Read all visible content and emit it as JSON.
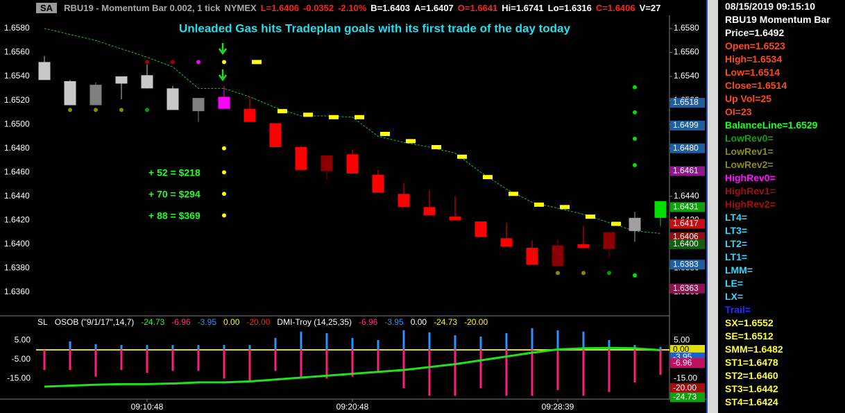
{
  "header": {
    "symbol": "SA",
    "items": [
      {
        "text": "RBU19 - Momentum Bar 0.002, 1 tick",
        "color": "#a8a8a8"
      },
      {
        "text": "NYMEX",
        "color": "#a8a8a8"
      },
      {
        "text": "L=1.6406",
        "color": "#ff2020"
      },
      {
        "text": "-0.0352",
        "color": "#ff2020"
      },
      {
        "text": "-2.10%",
        "color": "#ff2020"
      },
      {
        "text": "B=1.6403",
        "color": "#ffffff"
      },
      {
        "text": "A=1.6407",
        "color": "#ffffff"
      },
      {
        "text": "O=1.6641",
        "color": "#ff2020"
      },
      {
        "text": "Hi=1.6741",
        "color": "#ffffff"
      },
      {
        "text": "Lo=1.6316",
        "color": "#ffffff"
      },
      {
        "text": "C=1.6406",
        "color": "#ff2020"
      },
      {
        "text": "V=27",
        "color": "#ffffff"
      }
    ]
  },
  "chart_data": [
    {
      "type": "candlestick",
      "title": "Unleaded Gas hits Tradeplan goals with its first trade of the day today",
      "title_color": "#20e0f0",
      "annotations": [
        {
          "text": "+ 52 = $218",
          "color": "#20ff20"
        },
        {
          "text": "+ 70 = $294",
          "color": "#20ff20"
        },
        {
          "text": "+ 88 = $369",
          "color": "#20ff20"
        }
      ],
      "categories": [
        null,
        null,
        null,
        null,
        "09:10:48",
        null,
        null,
        null,
        null,
        null,
        null,
        null,
        "09:20:48",
        null,
        null,
        null,
        null,
        null,
        null,
        null,
        "09:28:39",
        null,
        null,
        null,
        null
      ],
      "ylim": [
        1.6342,
        1.6591
      ],
      "yticks": [
        {
          "value": 1.658,
          "label": "1.6580"
        },
        {
          "value": 1.656,
          "label": "1.6560"
        },
        {
          "value": 1.654,
          "label": "1.6540"
        },
        {
          "value": 1.652,
          "label": "1.6520"
        },
        {
          "value": 1.65,
          "label": "1.6500"
        },
        {
          "value": 1.648,
          "label": "1.6480"
        },
        {
          "value": 1.646,
          "label": "1.6460"
        },
        {
          "value": 1.644,
          "label": "1.6440"
        },
        {
          "value": 1.642,
          "label": "1.6420"
        },
        {
          "value": 1.64,
          "label": "1.6400"
        },
        {
          "value": 1.638,
          "label": "1.6380"
        },
        {
          "value": 1.636,
          "label": "1.6360"
        }
      ],
      "candles": [
        {
          "open": 1.6552,
          "high": 1.6557,
          "low": 1.6537,
          "close": 1.6537,
          "color": "#c8c8c8"
        },
        {
          "open": 1.6536,
          "high": 1.6537,
          "low": 1.6516,
          "close": 1.6516,
          "color": "#c8c8c8"
        },
        {
          "open": 1.6533,
          "high": 1.6535,
          "low": 1.6516,
          "close": 1.6516,
          "color": "#808080"
        },
        {
          "open": 1.6534,
          "high": 1.654,
          "low": 1.6521,
          "close": 1.654,
          "color": "#c8c8c8"
        },
        {
          "open": 1.653,
          "high": 1.655,
          "low": 1.653,
          "close": 1.6541,
          "color": "#c8c8c8"
        },
        {
          "open": 1.653,
          "high": 1.6532,
          "low": 1.6512,
          "close": 1.6512,
          "color": "#c8c8c8"
        },
        {
          "open": 1.6522,
          "high": 1.6522,
          "low": 1.6502,
          "close": 1.6511,
          "color": "#808080"
        },
        {
          "open": 1.6513,
          "high": 1.6532,
          "low": 1.6513,
          "close": 1.6523,
          "color": "#ff00ff"
        },
        {
          "open": 1.6513,
          "high": 1.6523,
          "low": 1.6502,
          "close": 1.6502,
          "color": "#ff0000"
        },
        {
          "open": 1.6501,
          "high": 1.6501,
          "low": 1.6481,
          "close": 1.6481,
          "color": "#ff0000"
        },
        {
          "open": 1.6481,
          "high": 1.6482,
          "low": 1.6462,
          "close": 1.6462,
          "color": "#ff0000"
        },
        {
          "open": 1.6474,
          "high": 1.6474,
          "low": 1.6454,
          "close": 1.6461,
          "color": "#8b0000"
        },
        {
          "open": 1.6475,
          "high": 1.6479,
          "low": 1.6459,
          "close": 1.6459,
          "color": "#ff0000"
        },
        {
          "open": 1.6458,
          "high": 1.6462,
          "low": 1.6443,
          "close": 1.6443,
          "color": "#ff0000"
        },
        {
          "open": 1.6442,
          "high": 1.6451,
          "low": 1.6431,
          "close": 1.6431,
          "color": "#ff0000"
        },
        {
          "open": 1.6431,
          "high": 1.6445,
          "low": 1.6424,
          "close": 1.6424,
          "color": "#ff0000"
        },
        {
          "open": 1.6423,
          "high": 1.644,
          "low": 1.642,
          "close": 1.642,
          "color": "#ff0000"
        },
        {
          "open": 1.6419,
          "high": 1.6419,
          "low": 1.6406,
          "close": 1.6406,
          "color": "#ff0000"
        },
        {
          "open": 1.6405,
          "high": 1.6418,
          "low": 1.6398,
          "close": 1.6398,
          "color": "#ff0000"
        },
        {
          "open": 1.6397,
          "high": 1.6403,
          "low": 1.6383,
          "close": 1.6383,
          "color": "#ff0000"
        },
        {
          "open": 1.6399,
          "high": 1.6404,
          "low": 1.6382,
          "close": 1.6382,
          "color": "#8b0000"
        },
        {
          "open": 1.64,
          "high": 1.6415,
          "low": 1.6397,
          "close": 1.6397,
          "color": "#ff0000"
        },
        {
          "open": 1.641,
          "high": 1.641,
          "low": 1.6389,
          "close": 1.6396,
          "color": "#8b0000"
        },
        {
          "open": 1.6411,
          "high": 1.6427,
          "low": 1.6402,
          "close": 1.6422,
          "color": "#a0a0a0"
        },
        {
          "open": 1.6422,
          "high": 1.6436,
          "low": 1.6415,
          "close": 1.6436,
          "color": "#00e000"
        }
      ],
      "balance_line": {
        "color": "#20c020",
        "values": [
          1.658,
          1.6575,
          1.657,
          1.6563,
          1.6556,
          1.6548,
          1.653,
          1.653,
          1.6523,
          1.6514,
          1.6507,
          1.6507,
          1.6506,
          1.649,
          1.6485,
          1.6481,
          1.6476,
          1.646,
          1.6446,
          1.6435,
          1.643,
          1.6425,
          1.6418,
          1.6411,
          1.6409
        ]
      },
      "stop_marks": {
        "color": "#ffff00",
        "values": [
          null,
          null,
          null,
          null,
          null,
          null,
          null,
          null,
          1.6552,
          1.6511,
          1.6508,
          1.6506,
          1.6506,
          1.6492,
          1.6486,
          1.6481,
          1.6473,
          1.6456,
          1.6442,
          1.6433,
          1.6431,
          1.6423,
          1.6417,
          null,
          null
        ]
      },
      "points": [
        {
          "x": 7,
          "y": 1.6552,
          "color": "#ffff00"
        },
        {
          "x": 7,
          "y": 1.648,
          "color": "#ffff00"
        },
        {
          "x": 7,
          "y": 1.646,
          "color": "#ffff00"
        },
        {
          "x": 7,
          "y": 1.6442,
          "color": "#ffff00"
        },
        {
          "x": 7,
          "y": 1.6424,
          "color": "#ffff00"
        },
        {
          "x": 4,
          "y": 1.6552,
          "color": "#a00000"
        },
        {
          "x": 5,
          "y": 1.6552,
          "color": "#a00000"
        },
        {
          "x": 6,
          "y": 1.6552,
          "color": "#ff00ff"
        },
        {
          "x": 1,
          "y": 1.6512,
          "color": "#8a8a00"
        },
        {
          "x": 2,
          "y": 1.6512,
          "color": "#8a8a00"
        },
        {
          "x": 3,
          "y": 1.6512,
          "color": "#8a8a00"
        },
        {
          "x": 4,
          "y": 1.6512,
          "color": "#00a000"
        },
        {
          "x": 20,
          "y": 1.6376,
          "color": "#8a8a00"
        },
        {
          "x": 21,
          "y": 1.6376,
          "color": "#8a8a00"
        },
        {
          "x": 22,
          "y": 1.6376,
          "color": "#00a000"
        },
        {
          "x": 23,
          "y": 1.6374,
          "color": "#00e000"
        },
        {
          "x": 23,
          "y": 1.6531,
          "color": "#00e000"
        },
        {
          "x": 23,
          "y": 1.651,
          "color": "#00e000"
        },
        {
          "x": 23,
          "y": 1.6488,
          "color": "#00e000"
        },
        {
          "x": 23,
          "y": 1.6466,
          "color": "#00e000"
        }
      ],
      "price_tags": [
        {
          "value": 1.6518,
          "label": "1.6518",
          "color": "#1f5f9f"
        },
        {
          "value": 1.6499,
          "label": "1.6499",
          "color": "#1f5f9f"
        },
        {
          "value": 1.648,
          "label": "1.6480",
          "color": "#1f5f9f"
        },
        {
          "value": 1.6461,
          "label": "1.6461",
          "color": "#8a1a8a"
        },
        {
          "value": 1.6431,
          "label": "1.6431",
          "color": "#10a010"
        },
        {
          "value": 1.6417,
          "label": "1.6417",
          "color": "#c01010"
        },
        {
          "value": 1.6406,
          "label": "1.6406",
          "color": "#8b1010"
        },
        {
          "value": 1.64,
          "label": "1.6400",
          "color": "#106010"
        },
        {
          "value": 1.6383,
          "label": "1.6383",
          "color": "#1f5f9f"
        },
        {
          "value": 1.6363,
          "label": "1.6363",
          "color": "#901050"
        }
      ]
    },
    {
      "type": "indicator",
      "header": [
        {
          "text": "SL",
          "color": "#ffffff"
        },
        {
          "text": "OSOB (\"9/1/17\",14,7)",
          "color": "#ffffff"
        },
        {
          "text": "-24.73",
          "color": "#20ff20"
        },
        {
          "text": "-6.96",
          "color": "#ff3080"
        },
        {
          "text": "-3.95",
          "color": "#3090ff"
        },
        {
          "text": "0.00",
          "color": "#ffff00"
        },
        {
          "text": "-20.00",
          "color": "#ff2020"
        },
        {
          "text": "DMI-Troy (14,25,35)",
          "color": "#ffffff"
        },
        {
          "text": "-6.96",
          "color": "#ff3080"
        },
        {
          "text": "-3.95",
          "color": "#3090ff"
        },
        {
          "text": "0.00",
          "color": "#ffffff"
        },
        {
          "text": "-24.73",
          "color": "#ffff00"
        },
        {
          "text": "-20.00",
          "color": "#ffff00"
        }
      ],
      "ylim": [
        -25,
        17
      ],
      "yticks": [
        {
          "value": 5,
          "label": "5.00"
        },
        {
          "value": -5,
          "label": "-5.00"
        },
        {
          "value": -15,
          "label": "-15.00"
        }
      ],
      "series": [
        {
          "kind": "bar",
          "color": "#3090ff",
          "values": [
            null,
            4.4,
            3,
            2.5,
            2.5,
            2.5,
            2.5,
            2.5,
            2.5,
            6.2,
            9.5,
            8.7,
            6.2,
            5.1,
            10.2,
            9.1,
            7.6,
            6.9,
            8.7,
            11.3,
            10.2,
            9.5,
            5.1,
            2.5,
            1.5
          ]
        },
        {
          "kind": "bar",
          "color": "#ff1f7f",
          "values": [
            -10.5,
            -10.5,
            -14,
            -10.5,
            -12,
            -11,
            -11,
            -15,
            -17,
            -11,
            -14,
            -15,
            -14,
            -12,
            -20,
            -24,
            -24,
            -20,
            -24,
            -24,
            -21,
            -24,
            -22,
            -17,
            -13
          ]
        },
        {
          "kind": "line",
          "color": "#20e020",
          "values": [
            -19.2,
            -18.7,
            -18.2,
            -17.9,
            -17.9,
            -17.6,
            -17,
            -17,
            -16.5,
            -15.5,
            -14.5,
            -13.5,
            -12.5,
            -11.5,
            -10.5,
            -9,
            -7.5,
            -5.5,
            -3.5,
            -1.5,
            0.2,
            0.8,
            1,
            0.8,
            -0.2
          ]
        }
      ],
      "tags": [
        {
          "value": 0,
          "label": "0.00",
          "color": "#e0e000",
          "line": true
        },
        {
          "value": -3.95,
          "label": "-3.95",
          "color": "#2060c0"
        },
        {
          "value": -6.96,
          "label": "-6.96",
          "color": "#c01060"
        },
        {
          "value": -20,
          "label": "-20.00",
          "color": "#a01010"
        },
        {
          "value": -24.73,
          "label": "-24.73",
          "color": "#10a010"
        }
      ]
    }
  ],
  "info_panel": [
    {
      "text": "08/15/2019 09:15:10",
      "color": "#ffffff"
    },
    {
      "text": "RBU19 Momentum Bar",
      "color": "#ffffff"
    },
    {
      "text": "Price=1.6492",
      "color": "#ffffff"
    },
    {
      "text": "Open=1.6523",
      "color": "#ff4a1a"
    },
    {
      "text": "High=1.6534",
      "color": "#ff4a1a"
    },
    {
      "text": "Low=1.6514",
      "color": "#ff4a1a"
    },
    {
      "text": "Close=1.6514",
      "color": "#ff4a1a"
    },
    {
      "text": "Up Vol=25",
      "color": "#ff4a1a"
    },
    {
      "text": "OI=23",
      "color": "#ff4a1a"
    },
    {
      "text": "BalanceLine=1.6529",
      "color": "#20ff20"
    },
    {
      "text": "LowRev0=",
      "color": "#10a010"
    },
    {
      "text": "LowRev1=",
      "color": "#8a8a20"
    },
    {
      "text": "LowRev2=",
      "color": "#8a8a20"
    },
    {
      "text": "HighRev0=",
      "color": "#ff10ff"
    },
    {
      "text": "HighRev1=",
      "color": "#a01010"
    },
    {
      "text": "HighRev2=",
      "color": "#a01010"
    },
    {
      "text": "LT4=",
      "color": "#30d8ff"
    },
    {
      "text": "LT3=",
      "color": "#30d8ff"
    },
    {
      "text": "LT2=",
      "color": "#30d8ff"
    },
    {
      "text": "LT1=",
      "color": "#30d8ff"
    },
    {
      "text": "LMM=",
      "color": "#30d8ff"
    },
    {
      "text": "LE=",
      "color": "#30d8ff"
    },
    {
      "text": "LX=",
      "color": "#30d8ff"
    },
    {
      "text": "Trail=",
      "color": "#2030ff"
    },
    {
      "text": "SX=1.6552",
      "color": "#ffff30"
    },
    {
      "text": "SE=1.6512",
      "color": "#ffff30"
    },
    {
      "text": "SMM=1.6482",
      "color": "#ffff30"
    },
    {
      "text": "ST1=1.6478",
      "color": "#ffff30"
    },
    {
      "text": "ST2=1.6460",
      "color": "#ffff30"
    },
    {
      "text": "ST3=1.6442",
      "color": "#ffff30"
    },
    {
      "text": "ST4=1.6424",
      "color": "#ffff30"
    }
  ]
}
